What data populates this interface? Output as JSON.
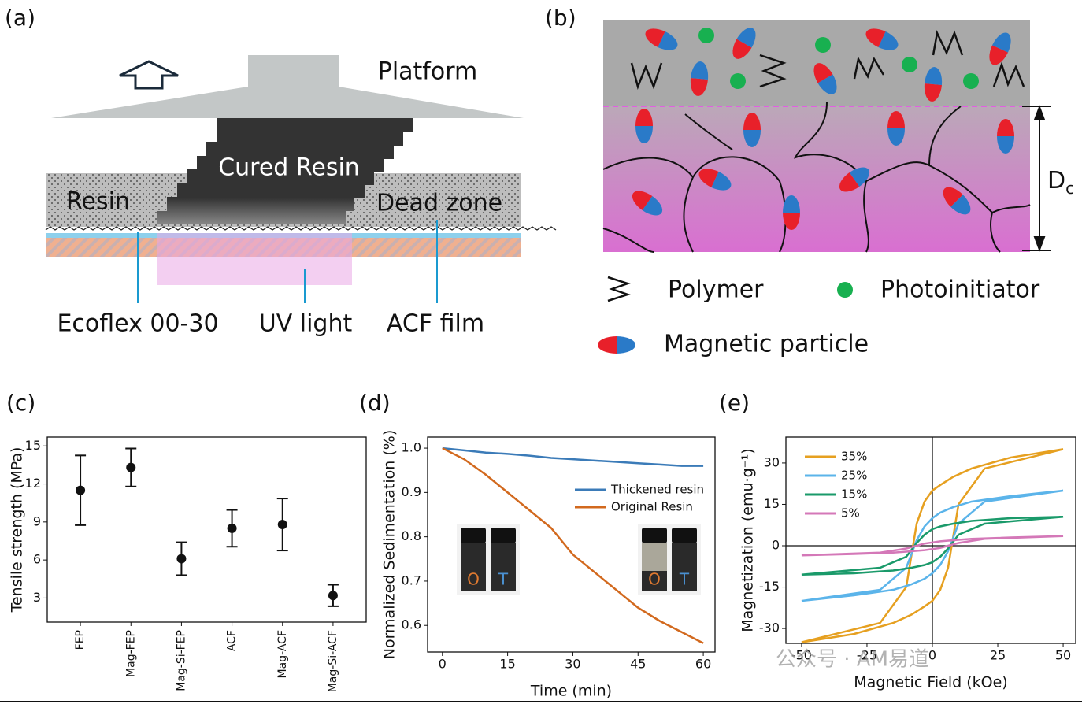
{
  "panels": {
    "a": {
      "label": "(a)",
      "platform": "Platform",
      "cured_resin": "Cured Resin",
      "resin": "Resin",
      "dead_zone": "Dead zone",
      "ecoflex": "Ecoflex 00-30",
      "uv": "UV light",
      "acf": "ACF film"
    },
    "b": {
      "label": "(b)",
      "dc": "D",
      "dc_sub": "c",
      "polymer": "Polymer",
      "photoinitiator": "Photoinitiator",
      "particle": "Magnetic particle"
    }
  },
  "watermark": "公众号 · AM易道",
  "chart_data": [
    {
      "type": "errorbar",
      "label": "(c)",
      "y_label": "Tensile strength (MPa)",
      "categories": [
        "FEP",
        "Mag-FEP",
        "Mag-Si-FEP",
        "ACF",
        "Mag-ACF",
        "Mag-Si-ACF"
      ],
      "values": [
        11.5,
        13.3,
        6.1,
        8.5,
        8.8,
        3.2
      ],
      "errors": [
        2.75,
        1.5,
        1.3,
        1.45,
        2.05,
        0.85
      ],
      "color": "#111111",
      "ylim": [
        1.1,
        15.7
      ],
      "yticks": [
        3,
        6,
        9,
        12,
        15
      ]
    },
    {
      "type": "line",
      "label": "(d)",
      "x_label": "Time (min)",
      "y_label": "Normalized Sedimentation (%)",
      "x": [
        0,
        5,
        10,
        15,
        20,
        25,
        30,
        35,
        40,
        45,
        50,
        55,
        60
      ],
      "series": [
        {
          "name": "Thickened resin",
          "color": "#3b7bb8",
          "values": [
            1.0,
            0.995,
            0.99,
            0.987,
            0.983,
            0.978,
            0.975,
            0.972,
            0.969,
            0.966,
            0.963,
            0.96,
            0.96
          ]
        },
        {
          "name": "Original Resin",
          "color": "#d2691e",
          "values": [
            1.0,
            0.975,
            0.94,
            0.9,
            0.86,
            0.82,
            0.76,
            0.72,
            0.68,
            0.64,
            0.61,
            0.585,
            0.56
          ]
        }
      ],
      "photo_labels": [
        "O",
        "T"
      ],
      "xlim": [
        -3.4,
        62.7
      ],
      "xticks": [
        0,
        15,
        30,
        45,
        60
      ],
      "ylim": [
        0.54,
        1.025
      ],
      "yticks": [
        0.6,
        0.7,
        0.8,
        0.9,
        {
          "value": 1,
          "label": "1.0"
        }
      ]
    },
    {
      "type": "line",
      "label": "(e)",
      "x_label": "Magnetic Field (kOe)",
      "y_label": "Magnetization (emu·g⁻¹)",
      "x": [
        50,
        30,
        15,
        8,
        3,
        0,
        -3,
        -6,
        -10,
        -20,
        -50,
        -30,
        -15,
        -8,
        -3,
        0,
        3,
        6,
        10,
        20,
        50
      ],
      "series": [
        {
          "name": "35%",
          "color": "#e6a020",
          "values": [
            35,
            32,
            28,
            25,
            22,
            20,
            16,
            8,
            -15,
            -28,
            -35,
            -32,
            -28,
            -25,
            -22,
            -20,
            -16,
            -8,
            15,
            28,
            35
          ]
        },
        {
          "name": "25%",
          "color": "#5bb4ea",
          "values": [
            20,
            18,
            16,
            14,
            12,
            10,
            7,
            2,
            -8,
            -16,
            -20,
            -18,
            -16,
            -14,
            -12,
            -10,
            -7,
            -2,
            8,
            16,
            20
          ]
        },
        {
          "name": "15%",
          "color": "#1a9a6a",
          "values": [
            10.5,
            10,
            9,
            8,
            7,
            6,
            4,
            1,
            -4,
            -8,
            -10.5,
            -10,
            -9,
            -8,
            -7,
            -6,
            -4,
            -1,
            4,
            8,
            10.5
          ]
        },
        {
          "name": "5%",
          "color": "#d478b8",
          "values": [
            3.5,
            3,
            2.5,
            2,
            1.6,
            1.2,
            0.8,
            0,
            -1,
            -2.5,
            -3.5,
            -3,
            -2.5,
            -2,
            -1.6,
            -1.2,
            -0.8,
            0,
            1,
            2.5,
            3.5
          ]
        }
      ],
      "xlim": [
        -56,
        54.8
      ],
      "xticks": [
        -50,
        -25,
        0,
        25,
        50
      ],
      "ylim": [
        -35.4,
        39.4
      ],
      "yticks": [
        -30,
        -15,
        0,
        15,
        30
      ]
    }
  ]
}
